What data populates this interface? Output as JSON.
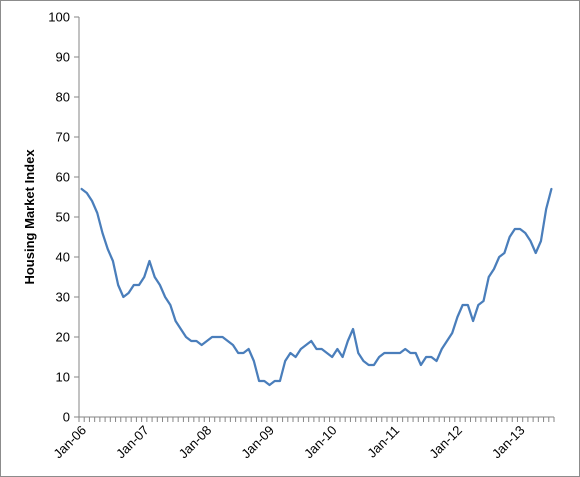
{
  "chart_data": {
    "type": "line",
    "title": "",
    "xlabel": "",
    "ylabel": "Housing Market Index",
    "ylim": [
      0,
      100
    ],
    "yticks": [
      0,
      10,
      20,
      30,
      40,
      50,
      60,
      70,
      80,
      90,
      100
    ],
    "xtick_labels": [
      "Jan-06",
      "Jan-07",
      "Jan-08",
      "Jan-09",
      "Jan-10",
      "Jan-11",
      "Jan-12",
      "Jan-13"
    ],
    "grid": false,
    "legend": "none",
    "x_start": "Jan-06",
    "x_end": "Aug-13",
    "series": [
      {
        "color": "#4a7ebb",
        "values": [
          57,
          56,
          54,
          51,
          46,
          42,
          39,
          33,
          30,
          31,
          33,
          33,
          35,
          39,
          35,
          33,
          30,
          28,
          24,
          22,
          20,
          19,
          19,
          18,
          19,
          20,
          20,
          20,
          19,
          18,
          16,
          16,
          17,
          14,
          9,
          9,
          8,
          9,
          9,
          14,
          16,
          15,
          17,
          18,
          19,
          17,
          17,
          16,
          15,
          17,
          15,
          19,
          22,
          16,
          14,
          13,
          13,
          15,
          16,
          16,
          16,
          16,
          17,
          16,
          16,
          13,
          15,
          15,
          14,
          17,
          19,
          21,
          25,
          28,
          28,
          24,
          28,
          29,
          35,
          37,
          40,
          41,
          45,
          47,
          47,
          46,
          44,
          41,
          44,
          52,
          57
        ]
      }
    ]
  }
}
